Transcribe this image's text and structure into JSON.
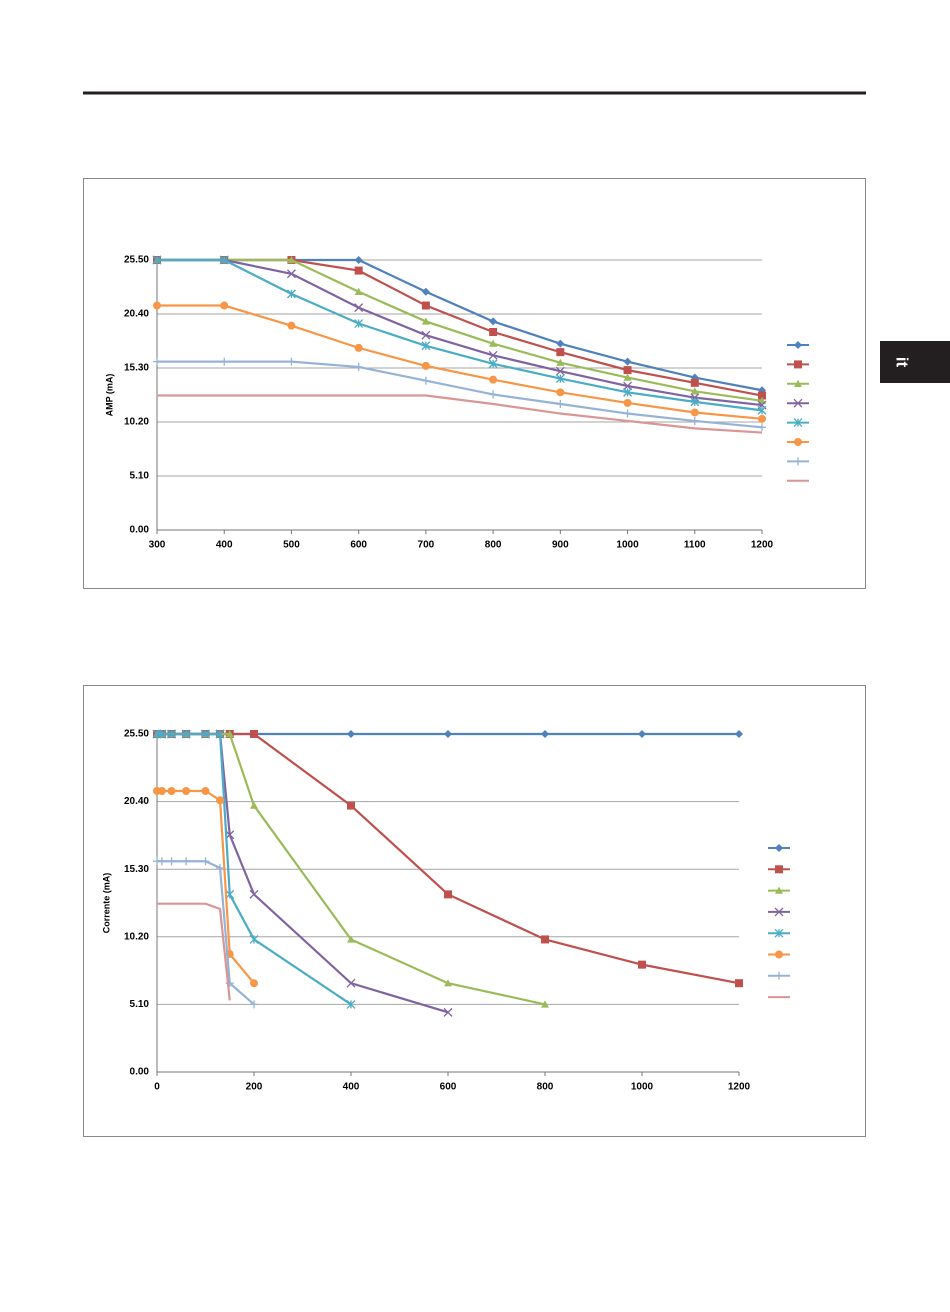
{
  "side_tab": "it",
  "chart_data": [
    {
      "type": "line",
      "ylabel": "AMP (mA)",
      "x": [
        300,
        400,
        500,
        600,
        700,
        800,
        900,
        1000,
        1100,
        1200
      ],
      "xlim": [
        300,
        1200
      ],
      "xticks": [
        300,
        400,
        500,
        600,
        700,
        800,
        900,
        1000,
        1100,
        1200
      ],
      "ylim": [
        0,
        25.5
      ],
      "yticks": [
        {
          "value": 0,
          "label": "0.00"
        },
        {
          "value": 5.1,
          "label": "5.10"
        },
        {
          "value": 10.2,
          "label": "10.20"
        },
        {
          "value": 15.3,
          "label": "15.30"
        },
        {
          "value": 20.4,
          "label": "20.40"
        },
        {
          "value": 25.5,
          "label": "25.50"
        }
      ],
      "grid": true,
      "legend": "right",
      "series": [
        {
          "color": "#4f81bd",
          "marker": "diamond",
          "values": [
            25.5,
            25.5,
            25.5,
            25.5,
            22.5,
            19.7,
            17.6,
            15.9,
            14.4,
            13.2
          ]
        },
        {
          "color": "#c0504d",
          "marker": "square",
          "values": [
            25.5,
            25.5,
            25.5,
            24.5,
            21.2,
            18.7,
            16.8,
            15.1,
            13.9,
            12.7
          ]
        },
        {
          "color": "#9bbb59",
          "marker": "triangle",
          "values": [
            25.5,
            25.5,
            25.5,
            22.5,
            19.7,
            17.6,
            15.8,
            14.4,
            13.1,
            12.2
          ]
        },
        {
          "color": "#8064a2",
          "marker": "x",
          "values": [
            25.5,
            25.5,
            24.2,
            21.0,
            18.4,
            16.5,
            15.0,
            13.6,
            12.5,
            11.8
          ]
        },
        {
          "color": "#4bacc6",
          "marker": "star",
          "values": [
            25.5,
            25.5,
            22.3,
            19.5,
            17.4,
            15.7,
            14.3,
            13.0,
            12.1,
            11.3
          ]
        },
        {
          "color": "#f79646",
          "marker": "circle",
          "values": [
            21.2,
            21.2,
            19.3,
            17.2,
            15.5,
            14.2,
            13.0,
            12.0,
            11.1,
            10.5
          ]
        },
        {
          "color": "#95b3d7",
          "marker": "plus",
          "values": [
            15.9,
            15.9,
            15.9,
            15.4,
            14.1,
            12.8,
            11.9,
            11.0,
            10.3,
            9.7
          ]
        },
        {
          "color": "#d99694",
          "marker": "none",
          "values": [
            12.7,
            12.7,
            12.7,
            12.7,
            12.7,
            11.9,
            11.0,
            10.3,
            9.6,
            9.2
          ]
        }
      ]
    },
    {
      "type": "line",
      "ylabel": "Corrente (mA)",
      "xlim": [
        0,
        1200
      ],
      "xticks": [
        0,
        200,
        400,
        600,
        800,
        1000,
        1200
      ],
      "ylim": [
        0,
        25.5
      ],
      "yticks": [
        {
          "value": 0,
          "label": "0.00"
        },
        {
          "value": 5.1,
          "label": "5.10"
        },
        {
          "value": 10.2,
          "label": "10.20"
        },
        {
          "value": 15.3,
          "label": "15.30"
        },
        {
          "value": 20.4,
          "label": "20.40"
        },
        {
          "value": 25.5,
          "label": "25.50"
        }
      ],
      "grid": true,
      "legend": "right",
      "series": [
        {
          "color": "#4f81bd",
          "marker": "diamond",
          "x": [
            0,
            10,
            30,
            60,
            100,
            130,
            150,
            200,
            400,
            600,
            800,
            1000,
            1200
          ],
          "values": [
            25.5,
            25.5,
            25.5,
            25.5,
            25.5,
            25.5,
            25.5,
            25.5,
            25.5,
            25.5,
            25.5,
            25.5,
            25.5
          ]
        },
        {
          "color": "#c0504d",
          "marker": "square",
          "x": [
            0,
            10,
            30,
            60,
            100,
            130,
            150,
            200,
            400,
            600,
            800,
            1000,
            1200
          ],
          "values": [
            25.5,
            25.5,
            25.5,
            25.5,
            25.5,
            25.5,
            25.5,
            25.5,
            20.1,
            13.4,
            10.0,
            8.1,
            6.7
          ]
        },
        {
          "color": "#9bbb59",
          "marker": "triangle",
          "x": [
            0,
            10,
            30,
            60,
            100,
            130,
            150,
            200,
            400,
            600,
            800
          ],
          "values": [
            25.5,
            25.5,
            25.5,
            25.5,
            25.5,
            25.5,
            25.5,
            20.1,
            10.0,
            6.7,
            5.1
          ]
        },
        {
          "color": "#8064a2",
          "marker": "x",
          "x": [
            0,
            10,
            30,
            60,
            100,
            130,
            150,
            200,
            400,
            600
          ],
          "values": [
            25.5,
            25.5,
            25.5,
            25.5,
            25.5,
            25.5,
            17.9,
            13.4,
            6.7,
            4.5
          ]
        },
        {
          "color": "#4bacc6",
          "marker": "star",
          "x": [
            0,
            10,
            30,
            60,
            100,
            130,
            150,
            200,
            400
          ],
          "values": [
            25.5,
            25.5,
            25.5,
            25.5,
            25.5,
            25.5,
            13.4,
            10.0,
            5.1
          ]
        },
        {
          "color": "#f79646",
          "marker": "circle",
          "x": [
            0,
            10,
            30,
            60,
            100,
            130,
            150,
            200
          ],
          "values": [
            21.2,
            21.2,
            21.2,
            21.2,
            21.2,
            20.5,
            8.9,
            6.7
          ]
        },
        {
          "color": "#95b3d7",
          "marker": "plus",
          "x": [
            0,
            10,
            30,
            60,
            100,
            130,
            150,
            200
          ],
          "values": [
            15.9,
            15.9,
            15.9,
            15.9,
            15.9,
            15.4,
            6.7,
            5.1
          ]
        },
        {
          "color": "#d99694",
          "marker": "none",
          "x": [
            0,
            100,
            130,
            150
          ],
          "values": [
            12.7,
            12.7,
            12.3,
            5.4
          ]
        }
      ]
    }
  ]
}
